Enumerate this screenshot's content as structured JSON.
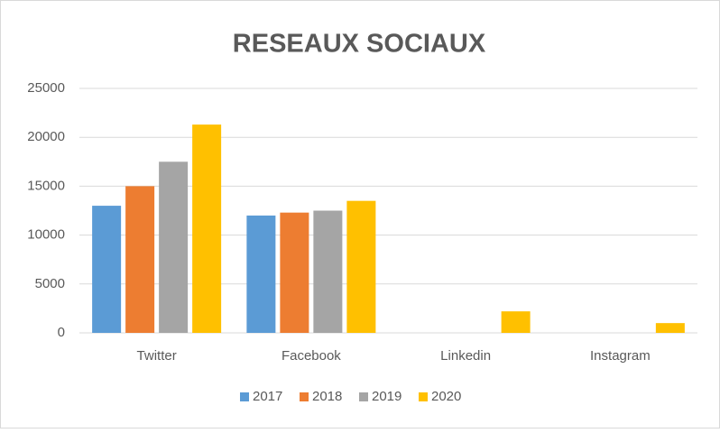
{
  "chart_data": {
    "type": "bar",
    "title": "RESEAUX SOCIAUX",
    "categories": [
      "Twitter",
      "Facebook",
      "Linkedin",
      "Instagram"
    ],
    "series": [
      {
        "name": "2017",
        "color": "#5b9bd5",
        "values": [
          13000,
          12000,
          0,
          0
        ]
      },
      {
        "name": "2018",
        "color": "#ed7d31",
        "values": [
          15000,
          12300,
          0,
          0
        ]
      },
      {
        "name": "2019",
        "color": "#a5a5a5",
        "values": [
          17500,
          12500,
          0,
          0
        ]
      },
      {
        "name": "2020",
        "color": "#ffc000",
        "values": [
          21300,
          13500,
          2200,
          1000
        ]
      }
    ],
    "ylim": [
      0,
      25000
    ],
    "yticks": [
      0,
      5000,
      10000,
      15000,
      20000,
      25000
    ],
    "grid": true,
    "legend": "bottom"
  }
}
